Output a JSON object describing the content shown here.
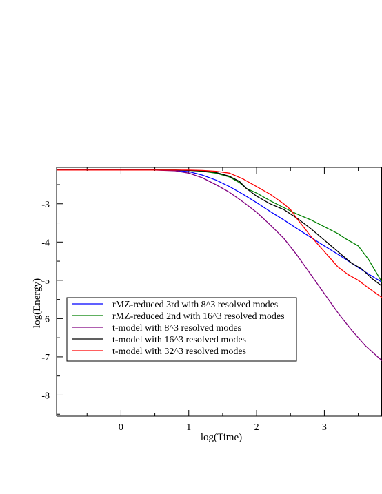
{
  "chart_data": {
    "type": "line",
    "xlabel": "log(Time)",
    "ylabel": "log(Energy)",
    "xlim": [
      -0.95,
      3.85
    ],
    "ylim": [
      -8.55,
      -2.05
    ],
    "xticks": [
      0,
      1,
      2,
      3
    ],
    "yticks": [
      -3,
      -4,
      -5,
      -6,
      -7,
      -8
    ],
    "legend_position": "lower-left",
    "series": [
      {
        "name": "rMZ-reduced 3rd with 8^3 resolved modes",
        "color": "#0000ff",
        "points": [
          [
            -0.95,
            -2.12
          ],
          [
            0.5,
            -2.12
          ],
          [
            0.8,
            -2.13
          ],
          [
            1.0,
            -2.16
          ],
          [
            1.2,
            -2.25
          ],
          [
            1.4,
            -2.38
          ],
          [
            1.6,
            -2.55
          ],
          [
            1.8,
            -2.75
          ],
          [
            2.0,
            -2.97
          ],
          [
            2.2,
            -3.2
          ],
          [
            2.4,
            -3.42
          ],
          [
            2.6,
            -3.65
          ],
          [
            2.8,
            -3.88
          ],
          [
            3.0,
            -4.1
          ],
          [
            3.2,
            -4.32
          ],
          [
            3.4,
            -4.55
          ],
          [
            3.6,
            -4.78
          ],
          [
            3.85,
            -5.05
          ]
        ]
      },
      {
        "name": "rMZ-reduced 2nd with 16^3 resolved modes",
        "color": "#008000",
        "points": [
          [
            -0.95,
            -2.12
          ],
          [
            0.8,
            -2.12
          ],
          [
            1.0,
            -2.13
          ],
          [
            1.2,
            -2.15
          ],
          [
            1.4,
            -2.2
          ],
          [
            1.6,
            -2.3
          ],
          [
            1.75,
            -2.45
          ],
          [
            1.85,
            -2.6
          ],
          [
            2.0,
            -2.72
          ],
          [
            2.2,
            -2.92
          ],
          [
            2.4,
            -3.1
          ],
          [
            2.6,
            -3.27
          ],
          [
            2.8,
            -3.42
          ],
          [
            3.0,
            -3.6
          ],
          [
            3.2,
            -3.78
          ],
          [
            3.3,
            -3.9
          ],
          [
            3.5,
            -4.1
          ],
          [
            3.65,
            -4.45
          ],
          [
            3.75,
            -4.75
          ],
          [
            3.85,
            -5.05
          ]
        ]
      },
      {
        "name": "t-model with 8^3 resolved modes",
        "color": "#800080",
        "points": [
          [
            -0.95,
            -2.12
          ],
          [
            0.5,
            -2.12
          ],
          [
            0.8,
            -2.14
          ],
          [
            1.0,
            -2.2
          ],
          [
            1.2,
            -2.32
          ],
          [
            1.4,
            -2.5
          ],
          [
            1.6,
            -2.7
          ],
          [
            1.8,
            -2.95
          ],
          [
            2.0,
            -3.22
          ],
          [
            2.2,
            -3.55
          ],
          [
            2.4,
            -3.9
          ],
          [
            2.6,
            -4.35
          ],
          [
            2.8,
            -4.85
          ],
          [
            3.0,
            -5.35
          ],
          [
            3.2,
            -5.85
          ],
          [
            3.4,
            -6.3
          ],
          [
            3.6,
            -6.7
          ],
          [
            3.85,
            -7.1
          ]
        ]
      },
      {
        "name": "t-model with 16^3 resolved modes",
        "color": "#000000",
        "points": [
          [
            -0.95,
            -2.12
          ],
          [
            0.8,
            -2.12
          ],
          [
            1.0,
            -2.13
          ],
          [
            1.2,
            -2.14
          ],
          [
            1.4,
            -2.18
          ],
          [
            1.6,
            -2.28
          ],
          [
            1.75,
            -2.42
          ],
          [
            1.85,
            -2.6
          ],
          [
            2.0,
            -2.8
          ],
          [
            2.2,
            -3.0
          ],
          [
            2.4,
            -3.15
          ],
          [
            2.6,
            -3.38
          ],
          [
            2.8,
            -3.65
          ],
          [
            3.0,
            -3.95
          ],
          [
            3.2,
            -4.25
          ],
          [
            3.4,
            -4.55
          ],
          [
            3.55,
            -4.7
          ],
          [
            3.7,
            -4.95
          ],
          [
            3.85,
            -5.15
          ]
        ]
      },
      {
        "name": "t-model with 32^3 resolved modes",
        "color": "#ff0000",
        "points": [
          [
            -0.95,
            -2.12
          ],
          [
            1.0,
            -2.12
          ],
          [
            1.2,
            -2.13
          ],
          [
            1.4,
            -2.15
          ],
          [
            1.6,
            -2.2
          ],
          [
            1.8,
            -2.35
          ],
          [
            2.0,
            -2.55
          ],
          [
            2.2,
            -2.75
          ],
          [
            2.4,
            -3.0
          ],
          [
            2.5,
            -3.15
          ],
          [
            2.6,
            -3.4
          ],
          [
            2.7,
            -3.62
          ],
          [
            2.8,
            -3.85
          ],
          [
            2.9,
            -4.05
          ],
          [
            3.0,
            -4.25
          ],
          [
            3.1,
            -4.45
          ],
          [
            3.2,
            -4.65
          ],
          [
            3.35,
            -4.85
          ],
          [
            3.5,
            -5.0
          ],
          [
            3.65,
            -5.2
          ],
          [
            3.85,
            -5.45
          ]
        ]
      }
    ]
  }
}
